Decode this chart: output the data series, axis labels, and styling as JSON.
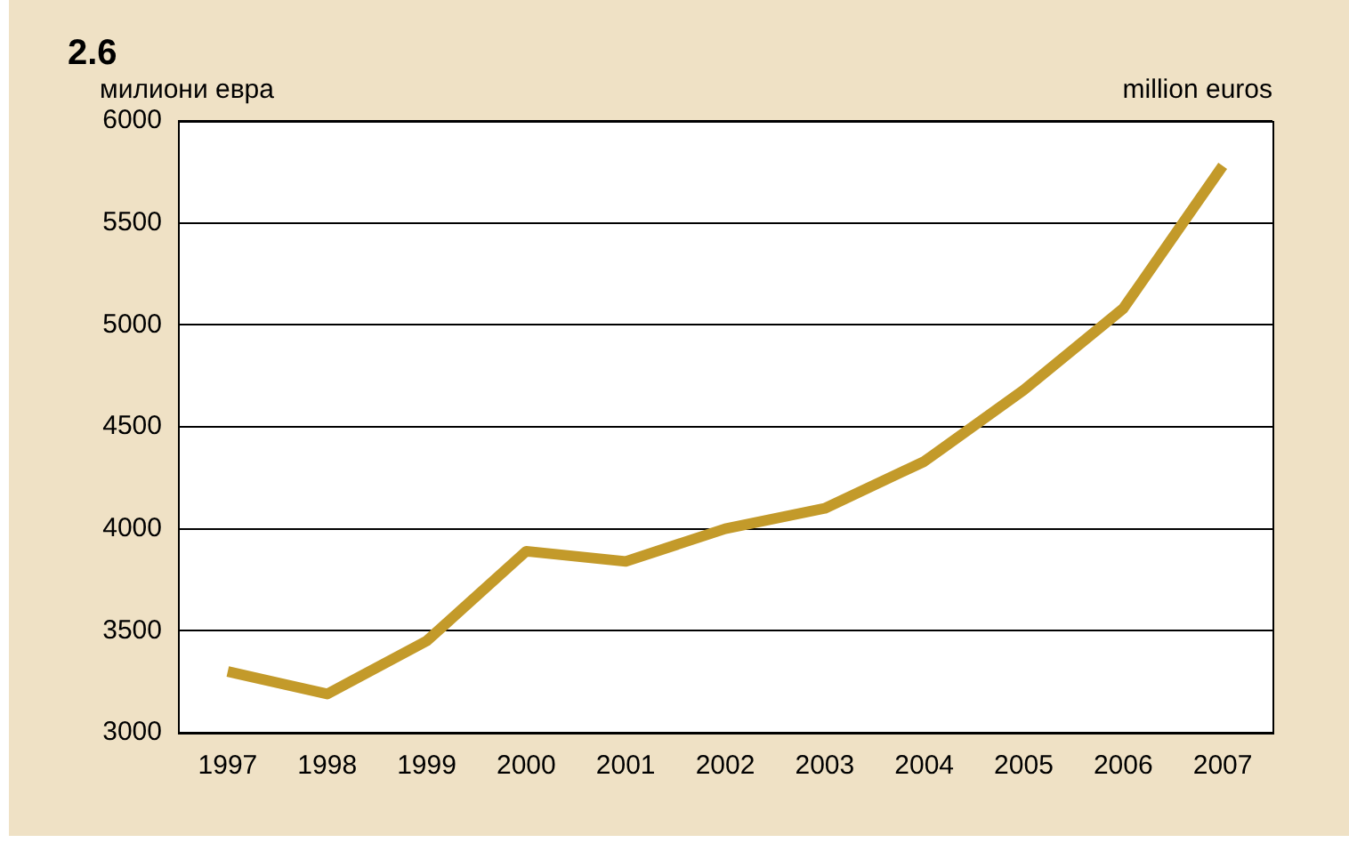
{
  "chart_data": {
    "type": "line",
    "title": "2.6",
    "ylabel": "милиони евра",
    "annotations": [
      "million euros"
    ],
    "categories": [
      "1997",
      "1998",
      "1999",
      "2000",
      "2001",
      "2002",
      "2003",
      "2004",
      "2005",
      "2006",
      "2007"
    ],
    "series": [
      {
        "color": "#c39a2a",
        "values": [
          3300,
          3190,
          3450,
          3890,
          3840,
          4000,
          4100,
          4330,
          4680,
          5080,
          5780
        ]
      }
    ],
    "ylim": [
      3000,
      6000
    ],
    "yticks": [
      3000,
      3500,
      4000,
      4500,
      5000,
      5500,
      6000
    ],
    "grid": "y",
    "legend": false,
    "marker": "none",
    "line_style": "solid"
  }
}
